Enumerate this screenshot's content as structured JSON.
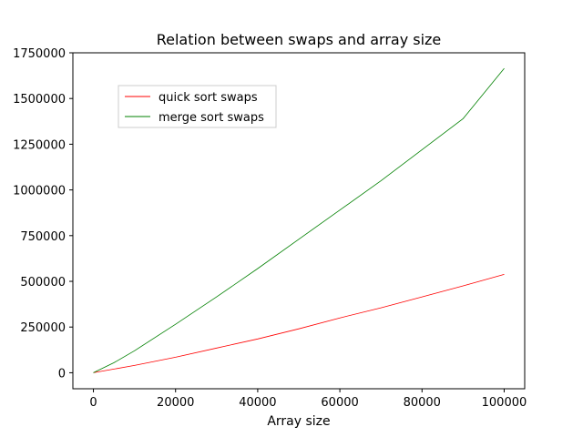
{
  "chart_data": {
    "type": "line",
    "title": "Relation between swaps and array size",
    "xlabel": "Array size",
    "ylabel": "",
    "xlim": [
      -5000,
      105000
    ],
    "ylim": [
      -87500,
      1750000
    ],
    "xticks": [
      0,
      20000,
      40000,
      60000,
      80000,
      100000
    ],
    "xtick_labels": [
      "0",
      "20000",
      "40000",
      "60000",
      "80000",
      "100000"
    ],
    "yticks": [
      0,
      250000,
      500000,
      750000,
      1000000,
      1250000,
      1500000,
      1750000
    ],
    "ytick_labels": [
      "0",
      "250000",
      "500000",
      "750000",
      "1000000",
      "1250000",
      "1500000",
      "1750000"
    ],
    "grid": false,
    "legend_position": "upper-left",
    "series": [
      {
        "name": "quick sort swaps",
        "color": "#ff0000",
        "x": [
          0,
          5000,
          10000,
          20000,
          30000,
          40000,
          50000,
          60000,
          70000,
          80000,
          90000,
          100000
        ],
        "y": [
          0,
          20000,
          40000,
          85000,
          135000,
          185000,
          240000,
          300000,
          355000,
          415000,
          475000,
          538000
        ]
      },
      {
        "name": "merge sort swaps",
        "color": "#008000",
        "x": [
          0,
          5000,
          10000,
          20000,
          30000,
          40000,
          50000,
          60000,
          70000,
          80000,
          90000,
          100000
        ],
        "y": [
          0,
          55000,
          120000,
          265000,
          415000,
          570000,
          730000,
          890000,
          1050000,
          1220000,
          1390000,
          1665000
        ]
      }
    ]
  }
}
